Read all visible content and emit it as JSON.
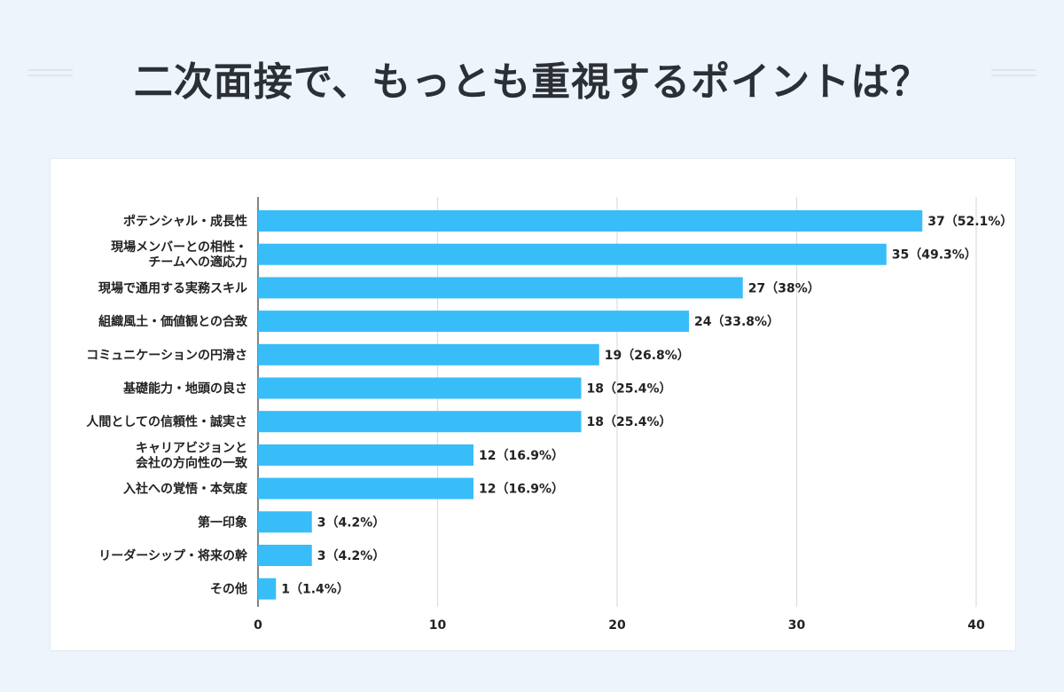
{
  "title": "二次面接で、もっとも重視するポイントは？",
  "colors": {
    "bar": "#38bdf8",
    "grid": "#d9dde3",
    "axis": "#333333",
    "text": "#222222"
  },
  "chart_data": {
    "type": "bar",
    "orientation": "horizontal",
    "title": "二次面接で、もっとも重視するポイントは？",
    "xlim": [
      0,
      40
    ],
    "xticks": [
      0,
      10,
      20,
      30,
      40
    ],
    "grid": true,
    "categories": [
      [
        "ポテンシャル・成長性"
      ],
      [
        "現場メンバーとの相性・",
        "チームへの適応力"
      ],
      [
        "現場で通用する実務スキル"
      ],
      [
        "組織風土・価値観との合致"
      ],
      [
        "コミュニケーションの円滑さ"
      ],
      [
        "基礎能力・地頭の良さ"
      ],
      [
        "人間としての信頼性・誠実さ"
      ],
      [
        "キャリアビジョンと",
        "会社の方向性の一致"
      ],
      [
        "入社への覚悟・本気度"
      ],
      [
        "第一印象"
      ],
      [
        "リーダーシップ・将来の幹"
      ],
      [
        "その他"
      ]
    ],
    "values": [
      37,
      35,
      27,
      24,
      19,
      18,
      18,
      12,
      12,
      3,
      3,
      1
    ],
    "data_labels": [
      "37（52.1%）",
      "35（49.3%）",
      "27（38%）",
      "24（33.8%）",
      "19（26.8%）",
      "18（25.4%）",
      "18（25.4%）",
      "12（16.9%）",
      "12（16.9%）",
      "3（4.2%）",
      "3（4.2%）",
      "1（1.4%）"
    ]
  }
}
